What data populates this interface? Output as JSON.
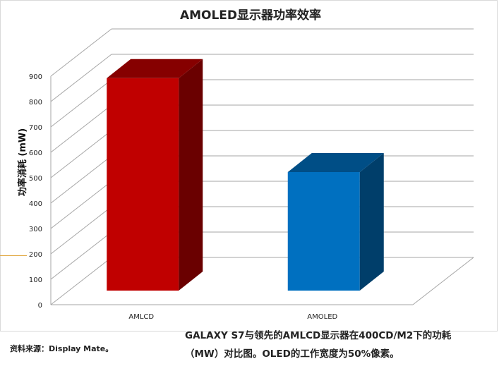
{
  "chart_data": {
    "type": "bar",
    "title": "AMOLED显示器功率效率",
    "ylabel": "功率消耗 (mW)",
    "xlabel": "",
    "categories": [
      "AMLCD",
      "AMOLED"
    ],
    "values": [
      870,
      500
    ],
    "ylim": [
      0,
      900
    ],
    "yticks": [
      "0",
      "100",
      "200",
      "300",
      "400",
      "500",
      "600",
      "700",
      "800",
      "900"
    ],
    "colors": [
      "#c00000",
      "#0070c0"
    ],
    "grid": true,
    "style": "3d"
  },
  "caption": {
    "line1": "GALAXY S7与领先的AMLCD显示器在400CD/M2下的功耗",
    "line2": "（MW）对比图。OLED的工作宽度为50%像素。"
  },
  "source": "资料来源：Display Mate。"
}
